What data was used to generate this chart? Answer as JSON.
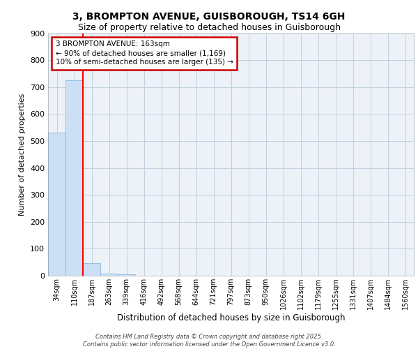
{
  "title_line1": "3, BROMPTON AVENUE, GUISBOROUGH, TS14 6GH",
  "title_line2": "Size of property relative to detached houses in Guisborough",
  "xlabel": "Distribution of detached houses by size in Guisborough",
  "ylabel": "Number of detached properties",
  "categories": [
    "34sqm",
    "110sqm",
    "187sqm",
    "263sqm",
    "339sqm",
    "416sqm",
    "492sqm",
    "568sqm",
    "644sqm",
    "721sqm",
    "797sqm",
    "873sqm",
    "950sqm",
    "1026sqm",
    "1102sqm",
    "1179sqm",
    "1255sqm",
    "1331sqm",
    "1407sqm",
    "1484sqm",
    "1560sqm"
  ],
  "values": [
    530,
    725,
    47,
    8,
    5,
    0,
    0,
    0,
    0,
    0,
    0,
    0,
    0,
    0,
    0,
    0,
    0,
    0,
    0,
    0,
    0
  ],
  "bar_color": "#cce0f5",
  "bar_edge_color": "#88b8e0",
  "ylim": [
    0,
    900
  ],
  "yticks": [
    0,
    100,
    200,
    300,
    400,
    500,
    600,
    700,
    800,
    900
  ],
  "property_line_x": 1.5,
  "annotation_text": "3 BROMPTON AVENUE: 163sqm\n← 90% of detached houses are smaller (1,169)\n10% of semi-detached houses are larger (135) →",
  "annotation_box_color": "#cc0000",
  "grid_color": "#c0d0e0",
  "bg_color": "#edf2f8",
  "footer_text": "Contains HM Land Registry data © Crown copyright and database right 2025.\nContains public sector information licensed under the Open Government Licence v3.0.",
  "title1_fontsize": 10,
  "title2_fontsize": 9,
  "ylabel_fontsize": 8,
  "xlabel_fontsize": 8.5,
  "ytick_fontsize": 8,
  "xtick_fontsize": 7,
  "annot_fontsize": 7.5,
  "footer_fontsize": 6
}
